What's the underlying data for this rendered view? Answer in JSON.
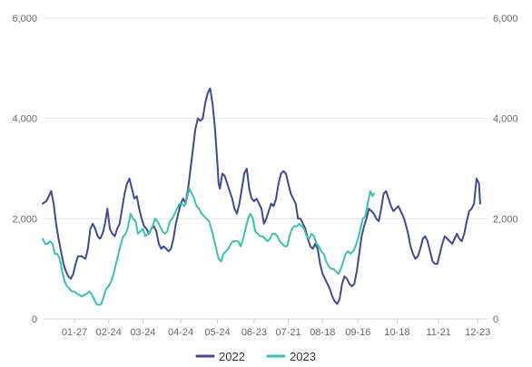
{
  "chart_data": {
    "type": "line",
    "title": "",
    "xlabel": "",
    "ylabel": "",
    "ylim": [
      0,
      6000
    ],
    "y_ticks": [
      0,
      2000,
      4000,
      6000
    ],
    "y_tick_labels": [
      "0",
      "2,000",
      "4,000",
      "6,000"
    ],
    "x_range": [
      1,
      365
    ],
    "x_ticks": [
      {
        "label": "01-27",
        "day": 27
      },
      {
        "label": "02-24",
        "day": 55
      },
      {
        "label": "03-24",
        "day": 83
      },
      {
        "label": "04-24",
        "day": 114
      },
      {
        "label": "05-24",
        "day": 144
      },
      {
        "label": "06-23",
        "day": 174
      },
      {
        "label": "07-21",
        "day": 202
      },
      {
        "label": "08-18",
        "day": 230
      },
      {
        "label": "09-16",
        "day": 259
      },
      {
        "label": "10-18",
        "day": 291
      },
      {
        "label": "11-21",
        "day": 325
      },
      {
        "label": "12-23",
        "day": 357
      }
    ],
    "grid": true,
    "legend_position": "bottom",
    "series": [
      {
        "name": "2022",
        "color": "#3f4a8f",
        "points": [
          [
            1,
            2300
          ],
          [
            4,
            2350
          ],
          [
            7,
            2500
          ],
          [
            8,
            2550
          ],
          [
            10,
            2300
          ],
          [
            12,
            1900
          ],
          [
            14,
            1600
          ],
          [
            16,
            1350
          ],
          [
            18,
            1100
          ],
          [
            20,
            950
          ],
          [
            22,
            850
          ],
          [
            24,
            800
          ],
          [
            26,
            900
          ],
          [
            28,
            1100
          ],
          [
            30,
            1250
          ],
          [
            33,
            1250
          ],
          [
            36,
            1200
          ],
          [
            38,
            1400
          ],
          [
            40,
            1800
          ],
          [
            42,
            1900
          ],
          [
            44,
            1800
          ],
          [
            46,
            1650
          ],
          [
            48,
            1600
          ],
          [
            50,
            1700
          ],
          [
            52,
            1900
          ],
          [
            54,
            2200
          ],
          [
            56,
            1800
          ],
          [
            58,
            1700
          ],
          [
            60,
            1650
          ],
          [
            62,
            1800
          ],
          [
            64,
            1900
          ],
          [
            66,
            2200
          ],
          [
            68,
            2500
          ],
          [
            70,
            2700
          ],
          [
            72,
            2800
          ],
          [
            74,
            2600
          ],
          [
            76,
            2400
          ],
          [
            78,
            2450
          ],
          [
            80,
            2200
          ],
          [
            82,
            2000
          ],
          [
            84,
            1850
          ],
          [
            86,
            1800
          ],
          [
            88,
            1700
          ],
          [
            90,
            1800
          ],
          [
            92,
            1850
          ],
          [
            94,
            1750
          ],
          [
            96,
            1500
          ],
          [
            98,
            1400
          ],
          [
            100,
            1450
          ],
          [
            102,
            1400
          ],
          [
            104,
            1350
          ],
          [
            106,
            1400
          ],
          [
            108,
            1600
          ],
          [
            110,
            1900
          ],
          [
            112,
            2100
          ],
          [
            114,
            2300
          ],
          [
            116,
            2400
          ],
          [
            118,
            2300
          ],
          [
            120,
            2600
          ],
          [
            122,
            3000
          ],
          [
            124,
            3400
          ],
          [
            126,
            3800
          ],
          [
            128,
            4000
          ],
          [
            130,
            3950
          ],
          [
            132,
            4000
          ],
          [
            134,
            4300
          ],
          [
            136,
            4500
          ],
          [
            138,
            4600
          ],
          [
            140,
            4300
          ],
          [
            142,
            3800
          ],
          [
            144,
            3100
          ],
          [
            145,
            2700
          ],
          [
            146,
            2600
          ],
          [
            148,
            2900
          ],
          [
            150,
            2850
          ],
          [
            152,
            2700
          ],
          [
            154,
            2550
          ],
          [
            156,
            2400
          ],
          [
            158,
            2200
          ],
          [
            160,
            2100
          ],
          [
            162,
            2300
          ],
          [
            164,
            2600
          ],
          [
            166,
            2900
          ],
          [
            168,
            3000
          ],
          [
            170,
            2600
          ],
          [
            172,
            2400
          ],
          [
            174,
            2350
          ],
          [
            176,
            2400
          ],
          [
            178,
            2300
          ],
          [
            180,
            2200
          ],
          [
            182,
            1900
          ],
          [
            184,
            2000
          ],
          [
            186,
            2150
          ],
          [
            188,
            2300
          ],
          [
            190,
            2250
          ],
          [
            192,
            2400
          ],
          [
            194,
            2700
          ],
          [
            196,
            2900
          ],
          [
            198,
            2950
          ],
          [
            200,
            2900
          ],
          [
            202,
            2700
          ],
          [
            204,
            2500
          ],
          [
            206,
            2400
          ],
          [
            208,
            2300
          ],
          [
            210,
            2000
          ],
          [
            212,
            2000
          ],
          [
            214,
            1900
          ],
          [
            216,
            1800
          ],
          [
            218,
            1600
          ],
          [
            220,
            1450
          ],
          [
            222,
            1400
          ],
          [
            224,
            1500
          ],
          [
            226,
            1400
          ],
          [
            228,
            1100
          ],
          [
            230,
            900
          ],
          [
            232,
            800
          ],
          [
            234,
            700
          ],
          [
            236,
            600
          ],
          [
            238,
            450
          ],
          [
            240,
            350
          ],
          [
            242,
            300
          ],
          [
            244,
            400
          ],
          [
            246,
            700
          ],
          [
            248,
            850
          ],
          [
            250,
            800
          ],
          [
            252,
            700
          ],
          [
            254,
            650
          ],
          [
            256,
            700
          ],
          [
            258,
            950
          ],
          [
            260,
            1300
          ],
          [
            262,
            1650
          ],
          [
            264,
            1850
          ],
          [
            266,
            2000
          ],
          [
            268,
            2200
          ],
          [
            270,
            2150
          ],
          [
            272,
            2100
          ],
          [
            274,
            2000
          ],
          [
            276,
            1950
          ],
          [
            278,
            2200
          ],
          [
            280,
            2500
          ],
          [
            282,
            2550
          ],
          [
            284,
            2400
          ],
          [
            286,
            2250
          ],
          [
            288,
            2150
          ],
          [
            290,
            2200
          ],
          [
            292,
            2250
          ],
          [
            294,
            2150
          ],
          [
            296,
            2050
          ],
          [
            298,
            1900
          ],
          [
            300,
            1700
          ],
          [
            302,
            1450
          ],
          [
            304,
            1300
          ],
          [
            306,
            1200
          ],
          [
            308,
            1250
          ],
          [
            310,
            1400
          ],
          [
            312,
            1600
          ],
          [
            314,
            1650
          ],
          [
            316,
            1550
          ],
          [
            318,
            1350
          ],
          [
            320,
            1150
          ],
          [
            322,
            1100
          ],
          [
            324,
            1100
          ],
          [
            326,
            1300
          ],
          [
            328,
            1500
          ],
          [
            330,
            1650
          ],
          [
            332,
            1600
          ],
          [
            334,
            1550
          ],
          [
            336,
            1500
          ],
          [
            338,
            1600
          ],
          [
            340,
            1700
          ],
          [
            342,
            1600
          ],
          [
            344,
            1550
          ],
          [
            346,
            1700
          ],
          [
            348,
            1950
          ],
          [
            350,
            2150
          ],
          [
            352,
            2200
          ],
          [
            354,
            2300
          ],
          [
            356,
            2800
          ],
          [
            358,
            2700
          ],
          [
            359,
            2300
          ]
        ]
      },
      {
        "name": "2023",
        "color": "#3dbfb0",
        "points": [
          [
            1,
            1600
          ],
          [
            3,
            1500
          ],
          [
            5,
            1500
          ],
          [
            7,
            1550
          ],
          [
            9,
            1500
          ],
          [
            11,
            1300
          ],
          [
            13,
            1300
          ],
          [
            15,
            1200
          ],
          [
            17,
            950
          ],
          [
            19,
            750
          ],
          [
            21,
            650
          ],
          [
            23,
            600
          ],
          [
            25,
            550
          ],
          [
            27,
            550
          ],
          [
            29,
            500
          ],
          [
            31,
            480
          ],
          [
            33,
            450
          ],
          [
            35,
            480
          ],
          [
            37,
            500
          ],
          [
            39,
            550
          ],
          [
            41,
            500
          ],
          [
            43,
            400
          ],
          [
            45,
            300
          ],
          [
            47,
            280
          ],
          [
            49,
            300
          ],
          [
            51,
            450
          ],
          [
            53,
            600
          ],
          [
            55,
            650
          ],
          [
            57,
            750
          ],
          [
            59,
            900
          ],
          [
            61,
            1100
          ],
          [
            63,
            1300
          ],
          [
            65,
            1500
          ],
          [
            67,
            1650
          ],
          [
            69,
            1700
          ],
          [
            71,
            1850
          ],
          [
            73,
            2100
          ],
          [
            75,
            2000
          ],
          [
            77,
            1950
          ],
          [
            79,
            1700
          ],
          [
            81,
            1750
          ],
          [
            83,
            1800
          ],
          [
            85,
            1650
          ],
          [
            87,
            1700
          ],
          [
            89,
            1750
          ],
          [
            91,
            1850
          ],
          [
            93,
            2000
          ],
          [
            95,
            1950
          ],
          [
            97,
            1850
          ],
          [
            99,
            1750
          ],
          [
            101,
            1700
          ],
          [
            103,
            1750
          ],
          [
            105,
            1950
          ],
          [
            107,
            2000
          ],
          [
            109,
            2100
          ],
          [
            111,
            2200
          ],
          [
            113,
            2300
          ],
          [
            115,
            2300
          ],
          [
            117,
            2250
          ],
          [
            119,
            2400
          ],
          [
            121,
            2600
          ],
          [
            123,
            2500
          ],
          [
            125,
            2400
          ],
          [
            127,
            2250
          ],
          [
            129,
            2200
          ],
          [
            131,
            2100
          ],
          [
            133,
            2050
          ],
          [
            135,
            2000
          ],
          [
            137,
            1950
          ],
          [
            139,
            1800
          ],
          [
            141,
            1600
          ],
          [
            143,
            1400
          ],
          [
            145,
            1200
          ],
          [
            147,
            1150
          ],
          [
            149,
            1300
          ],
          [
            151,
            1350
          ],
          [
            153,
            1400
          ],
          [
            155,
            1500
          ],
          [
            157,
            1550
          ],
          [
            159,
            1550
          ],
          [
            161,
            1550
          ],
          [
            163,
            1450
          ],
          [
            165,
            1600
          ],
          [
            167,
            1800
          ],
          [
            169,
            2000
          ],
          [
            171,
            2100
          ],
          [
            173,
            2000
          ],
          [
            175,
            1750
          ],
          [
            177,
            1700
          ],
          [
            179,
            1650
          ],
          [
            181,
            1650
          ],
          [
            183,
            1600
          ],
          [
            185,
            1550
          ],
          [
            187,
            1600
          ],
          [
            189,
            1700
          ],
          [
            191,
            1700
          ],
          [
            193,
            1650
          ],
          [
            195,
            1550
          ],
          [
            197,
            1500
          ],
          [
            199,
            1450
          ],
          [
            201,
            1450
          ],
          [
            203,
            1650
          ],
          [
            205,
            1800
          ],
          [
            207,
            1850
          ],
          [
            209,
            1850
          ],
          [
            211,
            1900
          ],
          [
            213,
            1850
          ],
          [
            215,
            1800
          ],
          [
            217,
            1650
          ],
          [
            219,
            1600
          ],
          [
            221,
            1700
          ],
          [
            223,
            1650
          ],
          [
            225,
            1500
          ],
          [
            227,
            1450
          ],
          [
            229,
            1350
          ],
          [
            231,
            1300
          ],
          [
            233,
            1150
          ],
          [
            235,
            1050
          ],
          [
            237,
            1000
          ],
          [
            239,
            1000
          ],
          [
            241,
            950
          ],
          [
            243,
            900
          ],
          [
            245,
            1000
          ],
          [
            247,
            1150
          ],
          [
            249,
            1300
          ],
          [
            251,
            1350
          ],
          [
            253,
            1300
          ],
          [
            255,
            1350
          ],
          [
            257,
            1450
          ],
          [
            259,
            1600
          ],
          [
            261,
            1800
          ],
          [
            263,
            2000
          ],
          [
            265,
            2050
          ],
          [
            267,
            2300
          ],
          [
            269,
            2550
          ],
          [
            271,
            2450
          ],
          [
            272,
            2500
          ]
        ]
      }
    ]
  }
}
